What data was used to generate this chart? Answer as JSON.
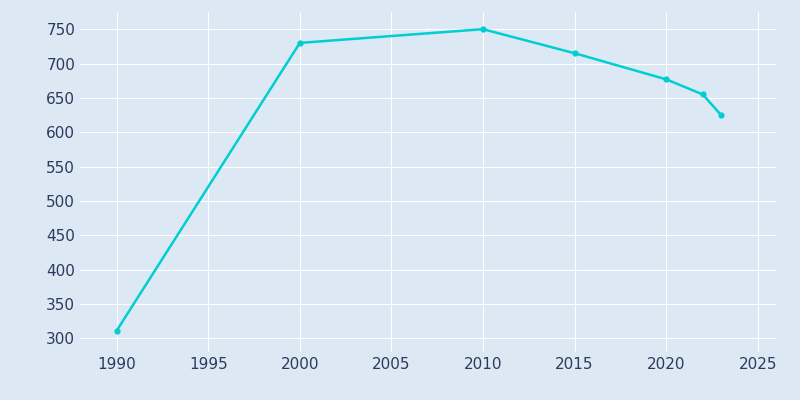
{
  "years": [
    1990,
    2000,
    2010,
    2015,
    2020,
    2022,
    2023
  ],
  "population": [
    311,
    730,
    750,
    715,
    677,
    655,
    625
  ],
  "line_color": "#00CED1",
  "marker": "o",
  "marker_size": 3.5,
  "line_width": 1.8,
  "background_color": "#dce9f5",
  "plot_bg_color": "#dce9f5",
  "grid_color": "#ffffff",
  "tick_color": "#2d3a5c",
  "xlim": [
    1988,
    2026
  ],
  "ylim": [
    280,
    775
  ],
  "xticks": [
    1990,
    1995,
    2000,
    2005,
    2010,
    2015,
    2020,
    2025
  ],
  "yticks": [
    300,
    350,
    400,
    450,
    500,
    550,
    600,
    650,
    700,
    750
  ]
}
